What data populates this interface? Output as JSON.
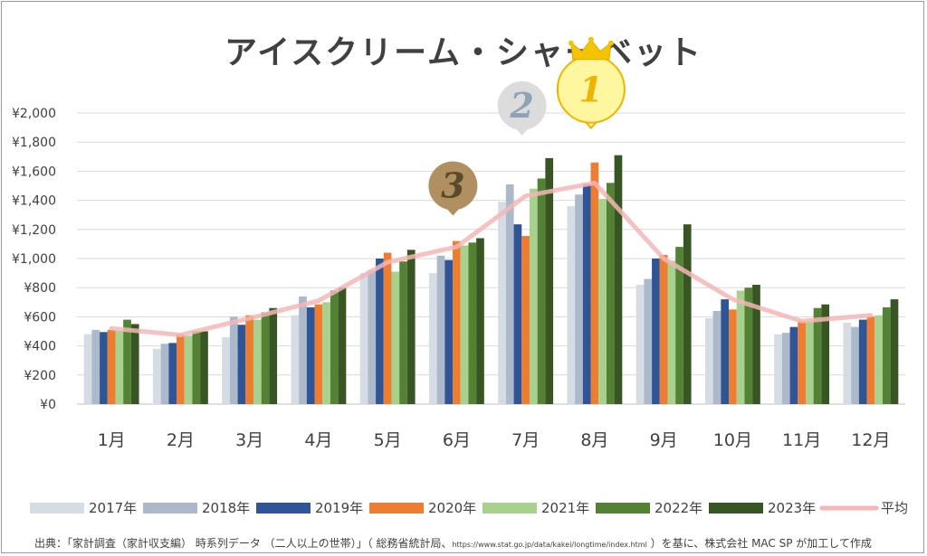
{
  "chart_data": {
    "type": "bar",
    "title": "アイスクリーム・シャーベット",
    "categories": [
      "1月",
      "2月",
      "3月",
      "4月",
      "5月",
      "6月",
      "7月",
      "8月",
      "9月",
      "10月",
      "11月",
      "12月"
    ],
    "ylim": [
      0,
      2000
    ],
    "yticks": [
      {
        "value": 0,
        "label": "¥0"
      },
      {
        "value": 200,
        "label": "¥200"
      },
      {
        "value": 400,
        "label": "¥400"
      },
      {
        "value": 600,
        "label": "¥600"
      },
      {
        "value": 800,
        "label": "¥800"
      },
      {
        "value": 1000,
        "label": "¥1,000"
      },
      {
        "value": 1200,
        "label": "¥1,200"
      },
      {
        "value": 1400,
        "label": "¥1,400"
      },
      {
        "value": 1600,
        "label": "¥1,600"
      },
      {
        "value": 1800,
        "label": "¥1,800"
      },
      {
        "value": 2000,
        "label": "¥2,000"
      }
    ],
    "grid": true,
    "legend_position": "bottom",
    "series": [
      {
        "name": "2017年",
        "color": "#d6dce4",
        "values": [
          480,
          380,
          460,
          610,
          900,
          900,
          1390,
          1360,
          820,
          590,
          480,
          560
        ]
      },
      {
        "name": "2018年",
        "color": "#acb9ca",
        "values": [
          510,
          415,
          600,
          740,
          920,
          1020,
          1510,
          1440,
          860,
          640,
          490,
          530
        ]
      },
      {
        "name": "2019年",
        "color": "#2f5597",
        "values": [
          495,
          420,
          545,
          665,
          1000,
          990,
          1235,
          1510,
          1000,
          720,
          530,
          580
        ]
      },
      {
        "name": "2020年",
        "color": "#ed7d31",
        "values": [
          510,
          480,
          610,
          685,
          1040,
          1120,
          1155,
          1660,
          1025,
          650,
          570,
          600
        ]
      },
      {
        "name": "2021年",
        "color": "#a9d18e",
        "values": [
          505,
          470,
          580,
          700,
          910,
          1090,
          1480,
          1410,
          985,
          780,
          570,
          610
        ]
      },
      {
        "name": "2022年",
        "color": "#548235",
        "values": [
          580,
          500,
          630,
          780,
          980,
          1110,
          1550,
          1520,
          1080,
          800,
          660,
          665
        ]
      },
      {
        "name": "2023年",
        "color": "#375623",
        "values": [
          550,
          500,
          660,
          800,
          1060,
          1140,
          1690,
          1710,
          1235,
          820,
          685,
          720
        ]
      }
    ],
    "average": {
      "name": "平均",
      "color": "#f4b6b6",
      "values": [
        520,
        475,
        590,
        710,
        975,
        1080,
        1430,
        1520,
        1000,
        720,
        570,
        610
      ]
    },
    "rankings": [
      {
        "rank": "1",
        "month_index": 7,
        "color": "#f0b400",
        "fill": "#fff6a0"
      },
      {
        "rank": "2",
        "month_index": 6,
        "color": "#8fa3b8",
        "fill": "#dcdcdc"
      },
      {
        "rank": "3",
        "month_index": 5,
        "color": "#5a4a2a",
        "fill": "#b09060"
      }
    ]
  },
  "source_prefix": "出典：「家計調査（家計収支編） 時系列データ （二人以上の世帯）」（ 総務省統計局、",
  "source_url": "https://www.stat.go.jp/data/kakei/longtime/index.html",
  "source_suffix": " ）を基に、株式会社 MAC SP が加工して作成"
}
